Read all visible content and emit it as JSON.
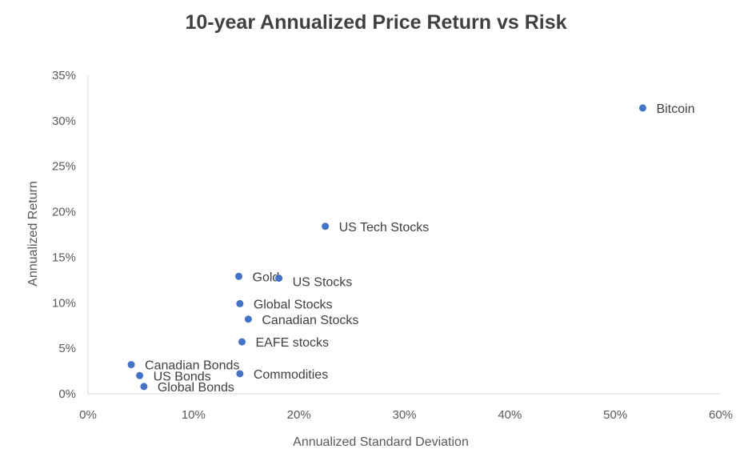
{
  "chart_data": {
    "type": "scatter",
    "title": "10-year Annualized Price Return vs Risk",
    "xlabel": "Annualized Standard  Deviation",
    "ylabel": "Annualized Return",
    "xlim": [
      0,
      60
    ],
    "ylim": [
      0,
      35
    ],
    "xticks": [
      "0%",
      "10%",
      "20%",
      "30%",
      "40%",
      "50%",
      "60%"
    ],
    "yticks": [
      "0%",
      "5%",
      "10%",
      "15%",
      "20%",
      "25%",
      "30%",
      "35%"
    ],
    "grid": false,
    "marker_color": "#4472C4",
    "points": [
      {
        "label": "Bitcoin",
        "x": 52.6,
        "y": 31.4
      },
      {
        "label": "US Tech Stocks",
        "x": 22.5,
        "y": 18.4
      },
      {
        "label": "Gold",
        "x": 14.3,
        "y": 12.9
      },
      {
        "label": "US Stocks",
        "x": 18.1,
        "y": 12.7
      },
      {
        "label": "Global Stocks",
        "x": 14.4,
        "y": 9.9
      },
      {
        "label": "Canadian Stocks",
        "x": 15.2,
        "y": 8.2
      },
      {
        "label": "EAFE stocks",
        "x": 14.6,
        "y": 5.7
      },
      {
        "label": "Canadian Bonds",
        "x": 4.1,
        "y": 3.2
      },
      {
        "label": "US Bonds",
        "x": 4.9,
        "y": 2.0
      },
      {
        "label": "Global Bonds",
        "x": 5.3,
        "y": 0.8
      },
      {
        "label": "Commodities",
        "x": 14.4,
        "y": 2.2
      }
    ]
  }
}
